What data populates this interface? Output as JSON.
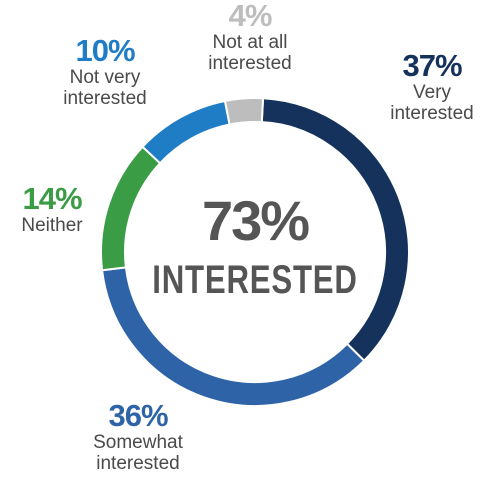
{
  "chart_data": {
    "type": "donut",
    "categories": [
      "Very interested",
      "Somewhat interested",
      "Neither",
      "Not very interested",
      "Not at all interested"
    ],
    "values": [
      37,
      36,
      14,
      10,
      4
    ],
    "value_labels": [
      "37%",
      "36%",
      "14%",
      "10%",
      "4%"
    ],
    "colors": [
      "#15325c",
      "#2e64a7",
      "#3a9c45",
      "#1f7dc5",
      "#bdbdbd"
    ],
    "center_text": {
      "value": 73,
      "label": "73%"
    },
    "center_subtitle": "INTERESTED"
  }
}
